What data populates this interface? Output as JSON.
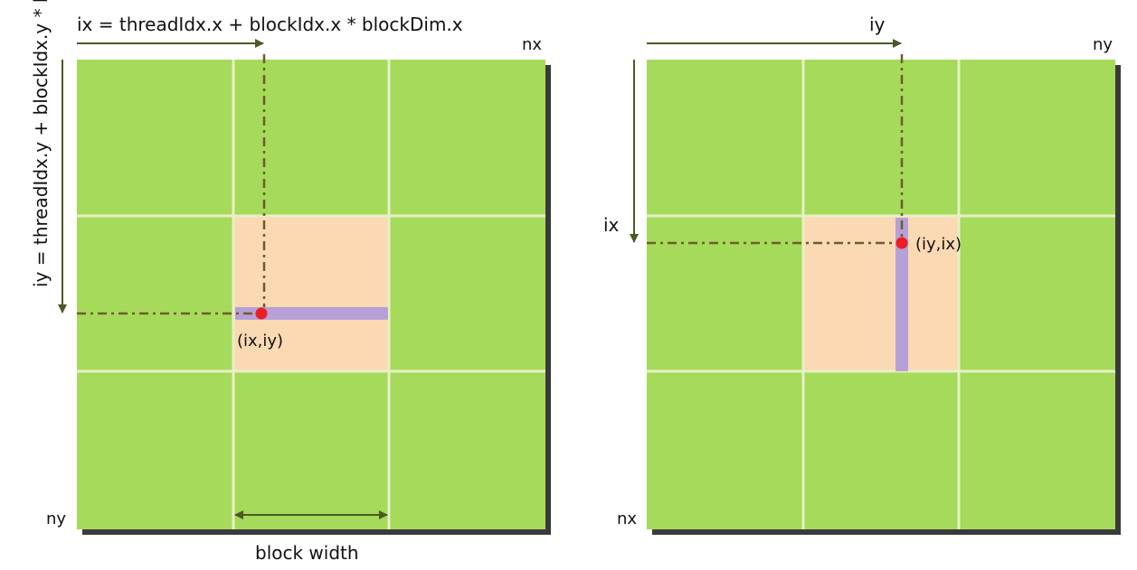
{
  "left_panel": {
    "ix_formula": "ix = threadIdx.x + blockIdx.x * blockDim.x",
    "iy_formula": "iy = threadIdx.y + blockIdx.y * blockDim.y",
    "corner_right_top": "nx",
    "corner_left_bottom": "ny",
    "point_label": "(ix,iy)",
    "block_width_label": "block width"
  },
  "right_panel": {
    "top_axis_label": "iy",
    "side_axis_label": "ix",
    "corner_right_top": "ny",
    "corner_left_bottom": "nx",
    "point_label": "(iy,ix)"
  },
  "colors": {
    "block": "#a6da5a",
    "grid_line": "#e8f0c8",
    "highlight_block": "#fbd9b3",
    "thread_strip": "#b7a0d8",
    "point": "#ee1c25",
    "arrow": "#4a5a24",
    "dash_line": "#6b5e2a",
    "shadow": "#3a3a3a"
  }
}
